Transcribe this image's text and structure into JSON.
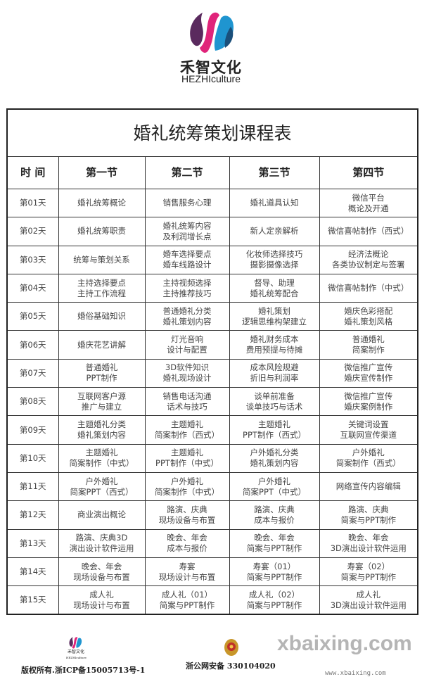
{
  "brand": {
    "name_cn": "禾智文化",
    "name_en": "HEZHIculture",
    "colors": {
      "magenta": "#e0247a",
      "blue": "#1f95d0",
      "purple": "#5a2a5e"
    }
  },
  "table": {
    "title": "婚礼统筹策划课程表",
    "headers": [
      "时 间",
      "第一节",
      "第二节",
      "第三节",
      "第四节"
    ],
    "rows": [
      {
        "day": "第01天",
        "cells": [
          [
            "婚礼统筹概论"
          ],
          [
            "销售服务心理"
          ],
          [
            "婚礼道具认知"
          ],
          [
            "微信平台",
            "概论及开通"
          ]
        ]
      },
      {
        "day": "第02天",
        "cells": [
          [
            "婚礼统筹职责"
          ],
          [
            "婚礼统筹内容",
            "及利润增长点"
          ],
          [
            "新人定亲解析"
          ],
          [
            "微信喜帖制作（西式）"
          ]
        ]
      },
      {
        "day": "第03天",
        "cells": [
          [
            "统筹与策划关系"
          ],
          [
            "婚车选择要点",
            "婚车线路设计"
          ],
          [
            "化妆师选择技巧",
            "摄影摄像选择"
          ],
          [
            "经济法概论",
            "各类协议制定与签署"
          ]
        ]
      },
      {
        "day": "第04天",
        "cells": [
          [
            "主持选择要点",
            "主持工作流程"
          ],
          [
            "主持视频选择",
            "主持推荐技巧"
          ],
          [
            "督导、助理",
            "婚礼统筹配合"
          ],
          [
            "微信喜帖制作（中式）"
          ]
        ]
      },
      {
        "day": "第05天",
        "cells": [
          [
            "婚俗基础知识"
          ],
          [
            "普通婚礼分类",
            "婚礼策划内容"
          ],
          [
            "婚礼策划",
            "逻辑思维构架建立"
          ],
          [
            "婚庆色彩搭配",
            "婚礼策划风格"
          ]
        ]
      },
      {
        "day": "第06天",
        "cells": [
          [
            "婚庆花艺讲解"
          ],
          [
            "灯光音响",
            "设计与配置"
          ],
          [
            "婚礼财务成本",
            "费用预提与待摊"
          ],
          [
            "普通婚礼",
            "简案制作"
          ]
        ]
      },
      {
        "day": "第07天",
        "cells": [
          [
            "普通婚礼",
            "PPT制作"
          ],
          [
            "3D软件知识",
            "婚礼现场设计"
          ],
          [
            "成本风险规避",
            "折旧与利润率"
          ],
          [
            "微信推广宣传",
            "婚庆宣传制作"
          ]
        ]
      },
      {
        "day": "第08天",
        "cells": [
          [
            "互联网客户源",
            "推广与建立"
          ],
          [
            "销售电话沟通",
            "话术与技巧"
          ],
          [
            "谈单前准备",
            "谈单技巧与话术"
          ],
          [
            "微信推广宣传",
            "婚庆案例制作"
          ]
        ]
      },
      {
        "day": "第09天",
        "cells": [
          [
            "主题婚礼分类",
            "婚礼策划内容"
          ],
          [
            "主题婚礼",
            "简案制作（西式）"
          ],
          [
            "主题婚礼",
            "PPT制作（西式）"
          ],
          [
            "关键词设置",
            "互联网宣传渠道"
          ]
        ]
      },
      {
        "day": "第10天",
        "cells": [
          [
            "主题婚礼",
            "简案制作（中式）"
          ],
          [
            "主题婚礼",
            "PPT制作（中式）"
          ],
          [
            "户外婚礼分类",
            "婚礼策划内容"
          ],
          [
            "户外婚礼",
            "简案制作（西式）"
          ]
        ]
      },
      {
        "day": "第11天",
        "cells": [
          [
            "户外婚礼",
            "简案PPT（西式）"
          ],
          [
            "户外婚礼",
            "简案制作（中式）"
          ],
          [
            "户外婚礼",
            "简案PPT（中式）"
          ],
          [
            "网络宣传内容编辑"
          ]
        ]
      },
      {
        "day": "第12天",
        "cells": [
          [
            "商业演出概论"
          ],
          [
            "路演、庆典",
            "现场设备与布置"
          ],
          [
            "路演、庆典",
            "成本与报价"
          ],
          [
            "路演、庆典",
            "简案与PPT制作"
          ]
        ]
      },
      {
        "day": "第13天",
        "cells": [
          [
            "路演、庆典3D",
            "演出设计软件运用"
          ],
          [
            "晚会、年会",
            "成本与报价"
          ],
          [
            "晚会、年会",
            "简案与PPT制作"
          ],
          [
            "晚会、年会",
            "3D演出设计软件运用"
          ]
        ]
      },
      {
        "day": "第14天",
        "cells": [
          [
            "晚会、年会",
            "现场设备与布置"
          ],
          [
            "寿宴",
            "现场设计与布置"
          ],
          [
            "寿宴（01）",
            "简案与PPT制作"
          ],
          [
            "寿宴（02）",
            "简案与PPT制作"
          ]
        ]
      },
      {
        "day": "第15天",
        "cells": [
          [
            "成人礼",
            "现场设计与布置"
          ],
          [
            "成人礼（01）",
            "简案与PPT制作"
          ],
          [
            "成人礼（02）",
            "简案与PPT制作"
          ],
          [
            "成人礼",
            "3D演出设计软件运用"
          ]
        ]
      }
    ]
  },
  "footer": {
    "small_logo_cn": "禾智文化",
    "small_logo_en": "HEZHIculture",
    "copyright": "版权所有.浙ICP备15005713号-1",
    "police_record": "浙公网安备 330104020",
    "police_icon": "police-badge-icon"
  },
  "watermark": {
    "text": "xbaixing.com",
    "url": "www.xbaixing.com"
  }
}
